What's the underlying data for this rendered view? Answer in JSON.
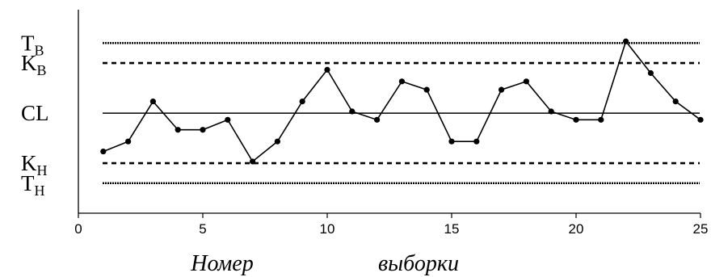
{
  "chart_data": {
    "type": "line",
    "x": [
      1,
      2,
      3,
      4,
      5,
      6,
      7,
      8,
      9,
      10,
      11,
      12,
      13,
      14,
      15,
      16,
      17,
      18,
      19,
      20,
      21,
      22,
      23,
      24,
      25
    ],
    "series": [
      {
        "values": [
          -1.15,
          -0.85,
          0.35,
          -0.5,
          -0.5,
          -0.2,
          -1.45,
          -0.85,
          0.35,
          1.3,
          0.05,
          -0.2,
          0.95,
          0.7,
          -0.85,
          -0.85,
          0.7,
          0.95,
          0.05,
          -0.2,
          -0.2,
          2.15,
          1.2,
          0.35,
          -0.2
        ]
      }
    ],
    "lines": [
      {
        "label_main": "T",
        "label_sub": "B",
        "y": 2.1,
        "style": "dotted"
      },
      {
        "label_main": "K",
        "label_sub": "B",
        "y": 1.5,
        "style": "dashed"
      },
      {
        "label_main": "CL",
        "label_sub": "",
        "y": 0,
        "style": "solid"
      },
      {
        "label_main": "K",
        "label_sub": "H",
        "y": -1.5,
        "style": "dashed"
      },
      {
        "label_main": "T",
        "label_sub": "H",
        "y": -2.1,
        "style": "dotted"
      }
    ],
    "xlim": [
      0,
      25
    ],
    "ylim": [
      -3,
      3.1
    ],
    "xticks": [
      0,
      5,
      10,
      15,
      20,
      25
    ],
    "xlabel_words": [
      "Номер",
      "выборки"
    ],
    "grid": false,
    "colors": {
      "line": "#000000",
      "marker": "#000000"
    }
  }
}
